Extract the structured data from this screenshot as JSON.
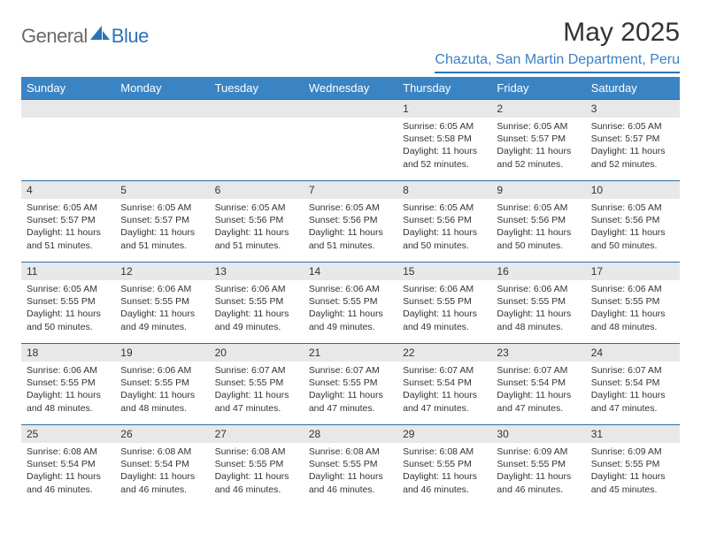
{
  "logo": {
    "general": "General",
    "blue": "Blue"
  },
  "title": "May 2025",
  "location": "Chazuta, San Martin Department, Peru",
  "colors": {
    "header_bg": "#3b84c4",
    "header_text": "#ffffff",
    "accent": "#2a73b8",
    "daynum_bg": "#e8e8e8",
    "text": "#333333",
    "logo_gray": "#6a6a6a"
  },
  "weekdays": [
    "Sunday",
    "Monday",
    "Tuesday",
    "Wednesday",
    "Thursday",
    "Friday",
    "Saturday"
  ],
  "weeks": [
    [
      null,
      null,
      null,
      null,
      {
        "n": "1",
        "sr": "6:05 AM",
        "ss": "5:58 PM",
        "dl": "11 hours and 52 minutes."
      },
      {
        "n": "2",
        "sr": "6:05 AM",
        "ss": "5:57 PM",
        "dl": "11 hours and 52 minutes."
      },
      {
        "n": "3",
        "sr": "6:05 AM",
        "ss": "5:57 PM",
        "dl": "11 hours and 52 minutes."
      }
    ],
    [
      {
        "n": "4",
        "sr": "6:05 AM",
        "ss": "5:57 PM",
        "dl": "11 hours and 51 minutes."
      },
      {
        "n": "5",
        "sr": "6:05 AM",
        "ss": "5:57 PM",
        "dl": "11 hours and 51 minutes."
      },
      {
        "n": "6",
        "sr": "6:05 AM",
        "ss": "5:56 PM",
        "dl": "11 hours and 51 minutes."
      },
      {
        "n": "7",
        "sr": "6:05 AM",
        "ss": "5:56 PM",
        "dl": "11 hours and 51 minutes."
      },
      {
        "n": "8",
        "sr": "6:05 AM",
        "ss": "5:56 PM",
        "dl": "11 hours and 50 minutes."
      },
      {
        "n": "9",
        "sr": "6:05 AM",
        "ss": "5:56 PM",
        "dl": "11 hours and 50 minutes."
      },
      {
        "n": "10",
        "sr": "6:05 AM",
        "ss": "5:56 PM",
        "dl": "11 hours and 50 minutes."
      }
    ],
    [
      {
        "n": "11",
        "sr": "6:05 AM",
        "ss": "5:55 PM",
        "dl": "11 hours and 50 minutes."
      },
      {
        "n": "12",
        "sr": "6:06 AM",
        "ss": "5:55 PM",
        "dl": "11 hours and 49 minutes."
      },
      {
        "n": "13",
        "sr": "6:06 AM",
        "ss": "5:55 PM",
        "dl": "11 hours and 49 minutes."
      },
      {
        "n": "14",
        "sr": "6:06 AM",
        "ss": "5:55 PM",
        "dl": "11 hours and 49 minutes."
      },
      {
        "n": "15",
        "sr": "6:06 AM",
        "ss": "5:55 PM",
        "dl": "11 hours and 49 minutes."
      },
      {
        "n": "16",
        "sr": "6:06 AM",
        "ss": "5:55 PM",
        "dl": "11 hours and 48 minutes."
      },
      {
        "n": "17",
        "sr": "6:06 AM",
        "ss": "5:55 PM",
        "dl": "11 hours and 48 minutes."
      }
    ],
    [
      {
        "n": "18",
        "sr": "6:06 AM",
        "ss": "5:55 PM",
        "dl": "11 hours and 48 minutes."
      },
      {
        "n": "19",
        "sr": "6:06 AM",
        "ss": "5:55 PM",
        "dl": "11 hours and 48 minutes."
      },
      {
        "n": "20",
        "sr": "6:07 AM",
        "ss": "5:55 PM",
        "dl": "11 hours and 47 minutes."
      },
      {
        "n": "21",
        "sr": "6:07 AM",
        "ss": "5:55 PM",
        "dl": "11 hours and 47 minutes."
      },
      {
        "n": "22",
        "sr": "6:07 AM",
        "ss": "5:54 PM",
        "dl": "11 hours and 47 minutes."
      },
      {
        "n": "23",
        "sr": "6:07 AM",
        "ss": "5:54 PM",
        "dl": "11 hours and 47 minutes."
      },
      {
        "n": "24",
        "sr": "6:07 AM",
        "ss": "5:54 PM",
        "dl": "11 hours and 47 minutes."
      }
    ],
    [
      {
        "n": "25",
        "sr": "6:08 AM",
        "ss": "5:54 PM",
        "dl": "11 hours and 46 minutes."
      },
      {
        "n": "26",
        "sr": "6:08 AM",
        "ss": "5:54 PM",
        "dl": "11 hours and 46 minutes."
      },
      {
        "n": "27",
        "sr": "6:08 AM",
        "ss": "5:55 PM",
        "dl": "11 hours and 46 minutes."
      },
      {
        "n": "28",
        "sr": "6:08 AM",
        "ss": "5:55 PM",
        "dl": "11 hours and 46 minutes."
      },
      {
        "n": "29",
        "sr": "6:08 AM",
        "ss": "5:55 PM",
        "dl": "11 hours and 46 minutes."
      },
      {
        "n": "30",
        "sr": "6:09 AM",
        "ss": "5:55 PM",
        "dl": "11 hours and 46 minutes."
      },
      {
        "n": "31",
        "sr": "6:09 AM",
        "ss": "5:55 PM",
        "dl": "11 hours and 45 minutes."
      }
    ]
  ],
  "labels": {
    "sunrise": "Sunrise: ",
    "sunset": "Sunset: ",
    "daylight": "Daylight: "
  }
}
